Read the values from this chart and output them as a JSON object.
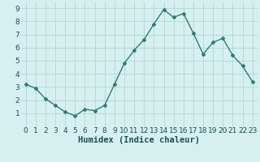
{
  "x": [
    0,
    1,
    2,
    3,
    4,
    5,
    6,
    7,
    8,
    9,
    10,
    11,
    12,
    13,
    14,
    15,
    16,
    17,
    18,
    19,
    20,
    21,
    22,
    23
  ],
  "y": [
    3.2,
    2.9,
    2.1,
    1.6,
    1.1,
    0.8,
    1.3,
    1.2,
    1.6,
    3.2,
    4.8,
    5.8,
    6.6,
    7.8,
    8.9,
    8.3,
    8.6,
    7.1,
    5.5,
    6.4,
    6.7,
    5.4,
    4.6,
    3.4
  ],
  "line_color": "#2e7d70",
  "marker": "D",
  "marker_size": 2.0,
  "bg_color": "#d6f0ef",
  "grid_color": "#b0d8d4",
  "xlabel": "Humidex (Indice chaleur)",
  "xlim": [
    -0.5,
    23.5
  ],
  "ylim": [
    0,
    9.5
  ],
  "yticks": [
    1,
    2,
    3,
    4,
    5,
    6,
    7,
    8,
    9
  ],
  "xticks": [
    0,
    1,
    2,
    3,
    4,
    5,
    6,
    7,
    8,
    9,
    10,
    11,
    12,
    13,
    14,
    15,
    16,
    17,
    18,
    19,
    20,
    21,
    22,
    23
  ],
  "xlabel_fontsize": 7.5,
  "tick_fontsize": 6.5,
  "line_width": 1.0
}
